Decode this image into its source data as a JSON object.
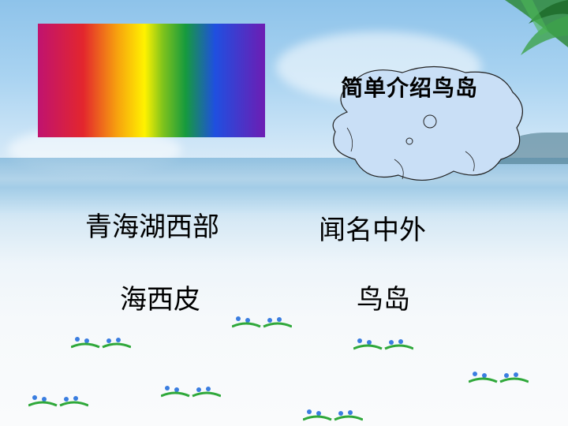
{
  "slide": {
    "bubble_text": "简单介绍鸟岛",
    "left_line1": "青海湖西部",
    "left_line2": "海西皮",
    "right_line1": "闻名中外",
    "right_line2": "鸟岛"
  },
  "colors": {
    "text": "#000000",
    "bubble_fill": "#c9dff6",
    "flower_leaf": "#2fa83a",
    "flower_bloom": "#3a7de0"
  },
  "icons": [
    "rainbow-image",
    "thought-bubble-icon",
    "palm-leaves-icon",
    "flower-decoration-icon"
  ]
}
